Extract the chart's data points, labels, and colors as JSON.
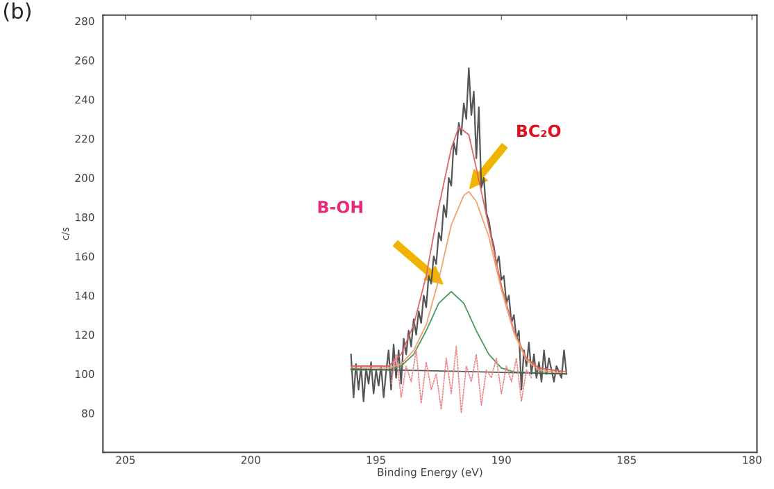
{
  "chart_data": {
    "type": "line",
    "xlabel": "Binding Energy (eV)",
    "ylabel": "c/s",
    "xlim": [
      205.9,
      179.8
    ],
    "xticks": [
      205,
      200,
      195,
      190,
      185,
      180
    ],
    "ylim": [
      60,
      283
    ],
    "yticks": [
      80,
      100,
      120,
      140,
      160,
      180,
      200,
      220,
      240,
      260,
      280
    ],
    "grid": false,
    "legend": false,
    "annotations": [
      "(b)",
      "B-OH",
      "BC₂O"
    ],
    "series": [
      {
        "color": "#f08a8a",
        "line_style": "dotted",
        "x": [
          194.4,
          194.2,
          194.0,
          193.8,
          193.6,
          193.4,
          193.2,
          193.0,
          192.8,
          192.6,
          192.4,
          192.2,
          192.0,
          191.8,
          191.6,
          191.4,
          191.2,
          191.0,
          190.8,
          190.6,
          190.4,
          190.2,
          190.0,
          189.8,
          189.6,
          189.4,
          189.2,
          189.0,
          188.8
        ],
        "values": [
          95,
          110,
          88,
          104,
          96,
          112,
          85,
          106,
          92,
          100,
          82,
          108,
          90,
          114,
          80,
          104,
          96,
          110,
          84,
          102,
          98,
          108,
          90,
          104,
          96,
          108,
          86,
          102,
          98
        ]
      },
      {
        "color": "#555555",
        "line_style": "solid",
        "x": [
          196.0,
          195.9,
          195.8,
          195.7,
          195.6,
          195.5,
          195.4,
          195.3,
          195.2,
          195.1,
          195.0,
          194.9,
          194.8,
          194.7,
          194.6,
          194.5,
          194.4,
          194.3,
          194.2,
          194.1,
          194.0,
          193.9,
          193.8,
          193.7,
          193.6,
          193.5,
          193.4,
          193.3,
          193.2,
          193.1,
          193.0,
          192.9,
          192.8,
          192.7,
          192.6,
          192.5,
          192.4,
          192.3,
          192.2,
          192.1,
          192.0,
          191.9,
          191.8,
          191.7,
          191.6,
          191.5,
          191.4,
          191.3,
          191.2,
          191.1,
          191.0,
          190.9,
          190.8,
          190.7,
          190.6,
          190.5,
          190.4,
          190.3,
          190.2,
          190.1,
          190.0,
          189.9,
          189.8,
          189.7,
          189.6,
          189.5,
          189.4,
          189.3,
          189.2,
          189.1,
          189.0,
          188.9,
          188.8,
          188.7,
          188.6,
          188.5,
          188.4,
          188.3,
          188.2,
          188.1,
          187.9,
          187.8,
          187.6,
          187.5,
          187.4
        ],
        "values": [
          110,
          88,
          105,
          92,
          104,
          86,
          103,
          95,
          106,
          90,
          102,
          94,
          104,
          88,
          101,
          112,
          92,
          115,
          98,
          112,
          95,
          118,
          110,
          122,
          114,
          128,
          120,
          132,
          126,
          140,
          134,
          150,
          146,
          160,
          156,
          172,
          168,
          186,
          180,
          200,
          196,
          218,
          212,
          228,
          222,
          238,
          230,
          256,
          232,
          244,
          210,
          236,
          195,
          200,
          182,
          178,
          170,
          165,
          156,
          160,
          148,
          150,
          136,
          140,
          126,
          130,
          118,
          122,
          92,
          112,
          104,
          116,
          100,
          110,
          98,
          106,
          96,
          112,
          100,
          108,
          96,
          104,
          98,
          112,
          100
        ]
      },
      {
        "color": "#e06666",
        "line_style": "solid",
        "x": [
          196.0,
          194.5,
          194.0,
          193.5,
          193.0,
          192.5,
          192.0,
          191.7,
          191.3,
          191.0,
          190.5,
          190.0,
          189.5,
          189.0,
          188.5,
          187.4
        ],
        "values": [
          104,
          104,
          110,
          125,
          150,
          185,
          215,
          226,
          222,
          205,
          175,
          145,
          122,
          108,
          103,
          101
        ]
      },
      {
        "color": "#f4a070",
        "line_style": "solid",
        "x": [
          196.0,
          194.5,
          194.0,
          193.5,
          193.0,
          192.5,
          192.0,
          191.5,
          191.3,
          191.0,
          190.5,
          190.0,
          189.5,
          189.0,
          188.5,
          187.4
        ],
        "values": [
          103,
          103,
          105,
          112,
          125,
          148,
          176,
          191,
          193,
          188,
          170,
          143,
          121,
          107,
          102,
          100
        ]
      },
      {
        "color": "#4a9a60",
        "line_style": "solid",
        "x": [
          196.0,
          194.5,
          194.0,
          193.5,
          193.0,
          192.5,
          192.0,
          191.5,
          191.0,
          190.5,
          190.0,
          189.5,
          187.4
        ],
        "values": [
          102,
          102,
          104,
          110,
          122,
          136,
          142,
          136,
          122,
          110,
          103,
          101,
          100
        ]
      },
      {
        "color": "#4d5a50",
        "line_style": "solid",
        "x": [
          196.0,
          191.7,
          187.4
        ],
        "values": [
          102.5,
          101.3,
          100
        ]
      }
    ]
  }
}
